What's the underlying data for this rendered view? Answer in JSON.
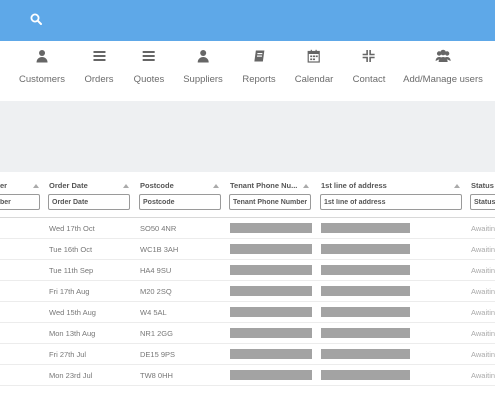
{
  "topbar": {
    "search_icon": "search-icon",
    "color": "#5ea8e8"
  },
  "nav": {
    "items": [
      {
        "label": "Customers",
        "icon": "user-icon"
      },
      {
        "label": "Orders",
        "icon": "list-icon"
      },
      {
        "label": "Quotes",
        "icon": "list-icon"
      },
      {
        "label": "Suppliers",
        "icon": "user-icon"
      },
      {
        "label": "Reports",
        "icon": "book-icon"
      },
      {
        "label": "Calendar",
        "icon": "calendar-icon"
      },
      {
        "label": "Contact",
        "icon": "compress-icon"
      },
      {
        "label": "Add/Manage users",
        "icon": "users-icon"
      }
    ]
  },
  "table": {
    "columns": [
      {
        "label": "er",
        "filter": "ber"
      },
      {
        "label": "Order Date",
        "filter": "Order Date"
      },
      {
        "label": "Postcode",
        "filter": "Postcode"
      },
      {
        "label": "Tenant Phone Nu...",
        "filter": "Tenant Phone Number"
      },
      {
        "label": "1st line of address",
        "filter": "1st line of address"
      },
      {
        "label": "Status",
        "filter": "Status"
      }
    ],
    "rows": [
      {
        "date": "Wed 17th Oct",
        "postcode": "SO50 4NR",
        "status": "Awaitin"
      },
      {
        "date": "Tue 16th Oct",
        "postcode": "WC1B 3AH",
        "status": "Awaitin"
      },
      {
        "date": "Tue 11th Sep",
        "postcode": "HA4 9SU",
        "status": "Awaitin"
      },
      {
        "date": "Fri 17th Aug",
        "postcode": "M20 2SQ",
        "status": "Awaitin"
      },
      {
        "date": "Wed 15th Aug",
        "postcode": "W4 5AL",
        "status": "Awaitin"
      },
      {
        "date": "Mon 13th Aug",
        "postcode": "NR1 2GG",
        "status": "Awaitin"
      },
      {
        "date": "Fri 27th Jul",
        "postcode": "DE15 9PS",
        "status": "Awaitin"
      },
      {
        "date": "Mon 23rd Jul",
        "postcode": "TW8 0HH",
        "status": "Awaitin"
      }
    ]
  }
}
